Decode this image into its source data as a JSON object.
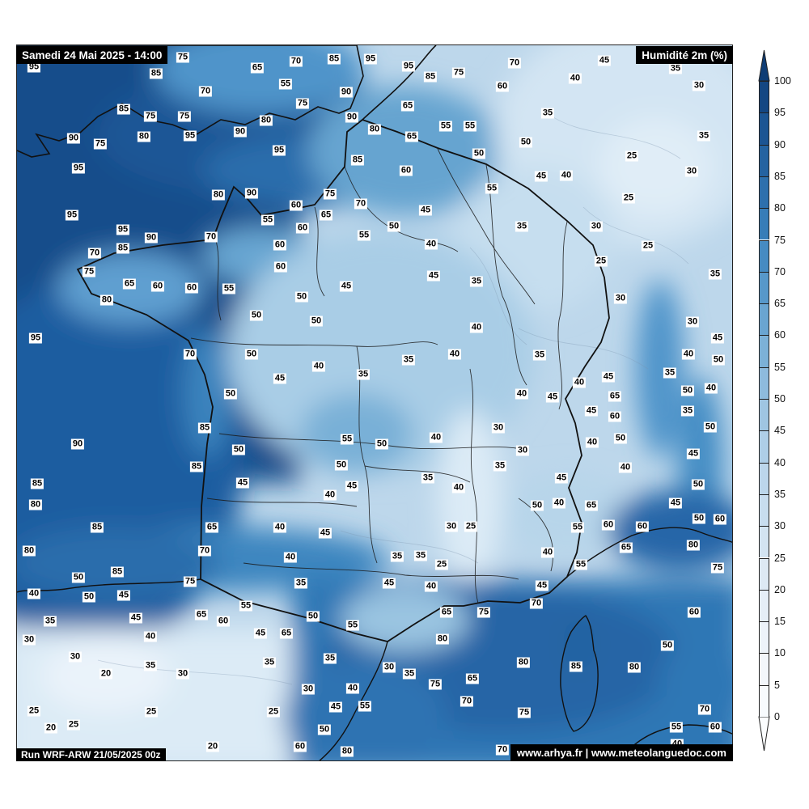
{
  "title_bar": {
    "date_label": "Samedi 24 Mai 2025 - 14:00",
    "variable_label": "Humidité 2m (%)"
  },
  "footer_bar": {
    "run_label": "Run WRF-ARW 21/05/2025 00z",
    "credits_label": "www.arhya.fr | www.meteolanguedoc.com"
  },
  "colorbar": {
    "unit": "%",
    "tick_labels_top_down": [
      100,
      95,
      90,
      85,
      80,
      75,
      70,
      65,
      60,
      55,
      50,
      45,
      40,
      35,
      30,
      25,
      20,
      15,
      10,
      5,
      0
    ],
    "segments_top_down": [
      "#144783",
      "#1c5593",
      "#2463a1",
      "#2d70ad",
      "#377db8",
      "#468bc2",
      "#5798ca",
      "#6aa5d1",
      "#7cb1d7",
      "#8ebbdd",
      "#9fc5e2",
      "#aecee7",
      "#bcd6eb",
      "#c8ddef",
      "#d3e4f2",
      "#dde9f4",
      "#e5eef7",
      "#edf3f9",
      "#f3f7fb",
      "#f8fbfd"
    ],
    "over_arrow_color": "#0f3d75",
    "under_arrow_color": "#fbfdfe"
  },
  "map": {
    "region": "France",
    "value_labels": [
      [
        95,
        41,
        82
      ],
      [
        75,
        225,
        70
      ],
      [
        85,
        192,
        90
      ],
      [
        65,
        317,
        83
      ],
      [
        70,
        365,
        75
      ],
      [
        85,
        412,
        72
      ],
      [
        95,
        457,
        72
      ],
      [
        95,
        504,
        81
      ],
      [
        85,
        531,
        94
      ],
      [
        75,
        566,
        89
      ],
      [
        60,
        620,
        106
      ],
      [
        70,
        635,
        77
      ],
      [
        45,
        746,
        74
      ],
      [
        35,
        834,
        84
      ],
      [
        40,
        710,
        96
      ],
      [
        30,
        863,
        105
      ],
      [
        55,
        352,
        103
      ],
      [
        70,
        253,
        112
      ],
      [
        90,
        427,
        113
      ],
      [
        85,
        152,
        134
      ],
      [
        75,
        185,
        143
      ],
      [
        75,
        227,
        143
      ],
      [
        75,
        373,
        127
      ],
      [
        65,
        503,
        130
      ],
      [
        35,
        676,
        139
      ],
      [
        90,
        434,
        144
      ],
      [
        80,
        328,
        148
      ],
      [
        80,
        177,
        168
      ],
      [
        95,
        234,
        167
      ],
      [
        90,
        296,
        162
      ],
      [
        90,
        90,
        170
      ],
      [
        75,
        123,
        177
      ],
      [
        80,
        462,
        159
      ],
      [
        65,
        508,
        168
      ],
      [
        55,
        550,
        155
      ],
      [
        55,
        580,
        155
      ],
      [
        50,
        649,
        175
      ],
      [
        35,
        869,
        167
      ],
      [
        50,
        591,
        189
      ],
      [
        95,
        96,
        207
      ],
      [
        25,
        780,
        192
      ],
      [
        95,
        344,
        185
      ],
      [
        85,
        441,
        197
      ],
      [
        45,
        668,
        217
      ],
      [
        40,
        699,
        216
      ],
      [
        30,
        854,
        211
      ],
      [
        60,
        501,
        210
      ],
      [
        55,
        607,
        232
      ],
      [
        80,
        269,
        240
      ],
      [
        90,
        310,
        238
      ],
      [
        75,
        407,
        239
      ],
      [
        25,
        776,
        244
      ],
      [
        70,
        445,
        251
      ],
      [
        60,
        365,
        253
      ],
      [
        45,
        525,
        259
      ],
      [
        95,
        88,
        265
      ],
      [
        65,
        402,
        265
      ],
      [
        55,
        330,
        271
      ],
      [
        95,
        151,
        283
      ],
      [
        90,
        186,
        293
      ],
      [
        70,
        260,
        292
      ],
      [
        85,
        151,
        306
      ],
      [
        70,
        116,
        312
      ],
      [
        60,
        373,
        281
      ],
      [
        50,
        486,
        279
      ],
      [
        55,
        449,
        290
      ],
      [
        35,
        644,
        279
      ],
      [
        30,
        736,
        279
      ],
      [
        40,
        532,
        301
      ],
      [
        60,
        345,
        302
      ],
      [
        25,
        800,
        303
      ],
      [
        25,
        742,
        322
      ],
      [
        75,
        109,
        335
      ],
      [
        60,
        346,
        329
      ],
      [
        45,
        427,
        353
      ],
      [
        45,
        535,
        340
      ],
      [
        35,
        588,
        347
      ],
      [
        35,
        883,
        338
      ],
      [
        65,
        159,
        350
      ],
      [
        60,
        194,
        353
      ],
      [
        60,
        236,
        355
      ],
      [
        55,
        282,
        356
      ],
      [
        80,
        131,
        370
      ],
      [
        50,
        372,
        366
      ],
      [
        30,
        766,
        368
      ],
      [
        50,
        316,
        389
      ],
      [
        50,
        390,
        396
      ],
      [
        40,
        588,
        404
      ],
      [
        30,
        855,
        397
      ],
      [
        95,
        43,
        417
      ],
      [
        45,
        886,
        417
      ],
      [
        70,
        234,
        437
      ],
      [
        50,
        310,
        437
      ],
      [
        40,
        393,
        452
      ],
      [
        35,
        504,
        444
      ],
      [
        40,
        561,
        437
      ],
      [
        35,
        666,
        438
      ],
      [
        40,
        850,
        437
      ],
      [
        50,
        887,
        444
      ],
      [
        45,
        345,
        467
      ],
      [
        35,
        448,
        462
      ],
      [
        35,
        827,
        460
      ],
      [
        45,
        751,
        465
      ],
      [
        40,
        715,
        472
      ],
      [
        50,
        284,
        486
      ],
      [
        40,
        644,
        486
      ],
      [
        45,
        682,
        490
      ],
      [
        65,
        759,
        489
      ],
      [
        50,
        849,
        482
      ],
      [
        40,
        878,
        479
      ],
      [
        45,
        730,
        507
      ],
      [
        35,
        849,
        507
      ],
      [
        60,
        759,
        514
      ],
      [
        50,
        877,
        527
      ],
      [
        85,
        252,
        528
      ],
      [
        30,
        615,
        528
      ],
      [
        55,
        428,
        542
      ],
      [
        50,
        471,
        548
      ],
      [
        40,
        538,
        540
      ],
      [
        40,
        731,
        546
      ],
      [
        50,
        766,
        541
      ],
      [
        90,
        95,
        548
      ],
      [
        50,
        294,
        555
      ],
      [
        30,
        645,
        556
      ],
      [
        45,
        856,
        560
      ],
      [
        85,
        242,
        576
      ],
      [
        35,
        617,
        575
      ],
      [
        50,
        421,
        574
      ],
      [
        35,
        528,
        590
      ],
      [
        45,
        693,
        590
      ],
      [
        40,
        772,
        577
      ],
      [
        45,
        299,
        596
      ],
      [
        85,
        45,
        597
      ],
      [
        45,
        434,
        600
      ],
      [
        40,
        566,
        602
      ],
      [
        50,
        862,
        598
      ],
      [
        40,
        407,
        611
      ],
      [
        80,
        43,
        623
      ],
      [
        40,
        690,
        621
      ],
      [
        50,
        663,
        624
      ],
      [
        65,
        730,
        624
      ],
      [
        45,
        834,
        621
      ],
      [
        30,
        557,
        650
      ],
      [
        25,
        581,
        650
      ],
      [
        40,
        345,
        651
      ],
      [
        85,
        119,
        651
      ],
      [
        65,
        261,
        651
      ],
      [
        50,
        863,
        640
      ],
      [
        60,
        889,
        641
      ],
      [
        55,
        713,
        651
      ],
      [
        60,
        751,
        648
      ],
      [
        60,
        793,
        650
      ],
      [
        45,
        401,
        658
      ],
      [
        80,
        35,
        680
      ],
      [
        70,
        252,
        680
      ],
      [
        40,
        676,
        682
      ],
      [
        65,
        773,
        676
      ],
      [
        80,
        856,
        673
      ],
      [
        40,
        358,
        688
      ],
      [
        35,
        490,
        687
      ],
      [
        35,
        519,
        686
      ],
      [
        25,
        545,
        697
      ],
      [
        55,
        717,
        697
      ],
      [
        75,
        886,
        701
      ],
      [
        50,
        96,
        713
      ],
      [
        85,
        144,
        706
      ],
      [
        75,
        234,
        718
      ],
      [
        35,
        371,
        720
      ],
      [
        45,
        480,
        720
      ],
      [
        40,
        532,
        724
      ],
      [
        45,
        669,
        723
      ],
      [
        40,
        41,
        733
      ],
      [
        50,
        109,
        737
      ],
      [
        45,
        152,
        735
      ],
      [
        55,
        303,
        748
      ],
      [
        65,
        248,
        759
      ],
      [
        60,
        275,
        767
      ],
      [
        35,
        61,
        767
      ],
      [
        45,
        167,
        763
      ],
      [
        70,
        662,
        745
      ],
      [
        65,
        551,
        756
      ],
      [
        75,
        597,
        756
      ],
      [
        60,
        857,
        756
      ],
      [
        50,
        386,
        761
      ],
      [
        55,
        435,
        772
      ],
      [
        45,
        321,
        782
      ],
      [
        65,
        353,
        782
      ],
      [
        30,
        35,
        790
      ],
      [
        40,
        185,
        786
      ],
      [
        80,
        546,
        789
      ],
      [
        50,
        824,
        797
      ],
      [
        30,
        92,
        811
      ],
      [
        35,
        407,
        813
      ],
      [
        35,
        332,
        818
      ],
      [
        80,
        646,
        818
      ],
      [
        85,
        711,
        823
      ],
      [
        80,
        783,
        824
      ],
      [
        35,
        185,
        822
      ],
      [
        30,
        480,
        824
      ],
      [
        20,
        130,
        832
      ],
      [
        30,
        225,
        832
      ],
      [
        35,
        505,
        832
      ],
      [
        65,
        583,
        838
      ],
      [
        75,
        537,
        845
      ],
      [
        30,
        380,
        851
      ],
      [
        40,
        435,
        850
      ],
      [
        25,
        41,
        878
      ],
      [
        25,
        186,
        879
      ],
      [
        25,
        90,
        895
      ],
      [
        20,
        62,
        899
      ],
      [
        70,
        576,
        866
      ],
      [
        45,
        414,
        873
      ],
      [
        55,
        450,
        872
      ],
      [
        25,
        337,
        879
      ],
      [
        75,
        647,
        880
      ],
      [
        70,
        870,
        876
      ],
      [
        20,
        262,
        922
      ],
      [
        50,
        400,
        901
      ],
      [
        60,
        370,
        922
      ],
      [
        80,
        428,
        928
      ],
      [
        70,
        620,
        926
      ],
      [
        55,
        835,
        898
      ],
      [
        60,
        883,
        898
      ],
      [
        40,
        836,
        919
      ]
    ]
  }
}
